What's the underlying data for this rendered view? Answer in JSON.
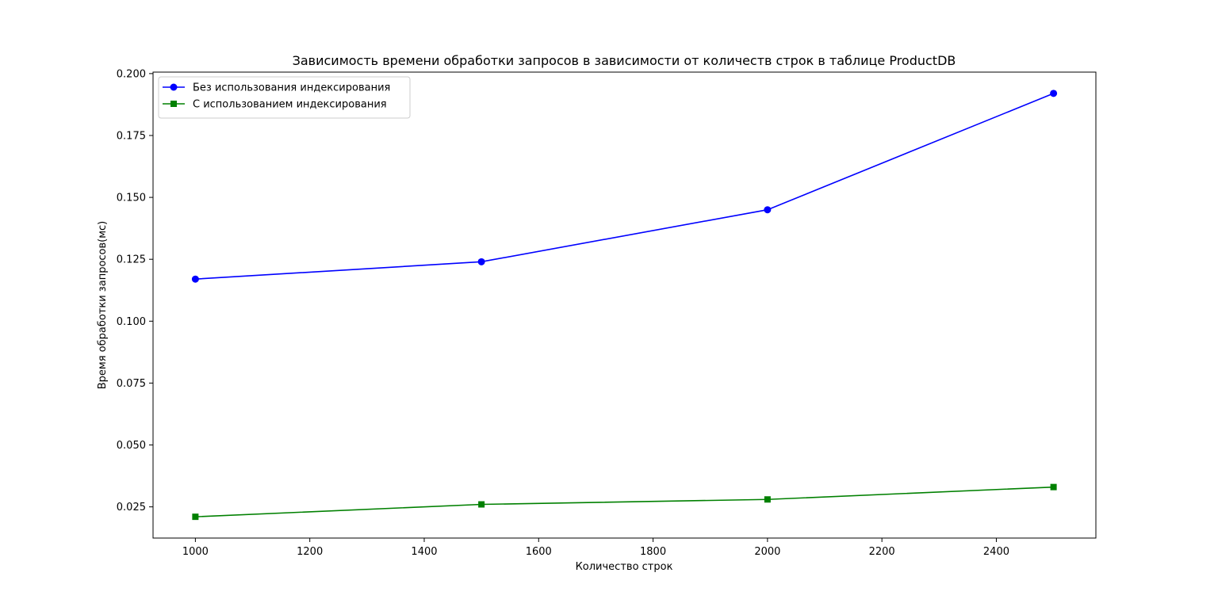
{
  "chart_data": {
    "type": "line",
    "title": "Зависимость времени обработки запросов в зависимости от количеств строк в таблице ProductDB",
    "xlabel": "Количество строк",
    "ylabel": "Время обработки запросов(мс)",
    "x": [
      1000,
      1500,
      2000,
      2500
    ],
    "xlim": [
      926,
      2574
    ],
    "ylim": [
      0.0124,
      0.2006
    ],
    "xticks": [
      1000,
      1200,
      1400,
      1600,
      1800,
      2000,
      2200,
      2400
    ],
    "xtick_labels": [
      "1000",
      "1200",
      "1400",
      "1600",
      "1800",
      "2000",
      "2200",
      "2400"
    ],
    "yticks": [
      0.025,
      0.05,
      0.075,
      0.1,
      0.125,
      0.15,
      0.175,
      0.2
    ],
    "ytick_labels": [
      "0.025",
      "0.050",
      "0.075",
      "0.100",
      "0.125",
      "0.150",
      "0.175",
      "0.200"
    ],
    "grid": false,
    "legend_position": "top-left",
    "series": [
      {
        "name": "Без использования индексирования",
        "values": [
          0.117,
          0.124,
          0.145,
          0.192
        ],
        "color": "#0000ff",
        "marker": "circle"
      },
      {
        "name": "С использованием индексирования",
        "values": [
          0.021,
          0.026,
          0.028,
          0.033
        ],
        "color": "#008000",
        "marker": "square"
      }
    ]
  }
}
